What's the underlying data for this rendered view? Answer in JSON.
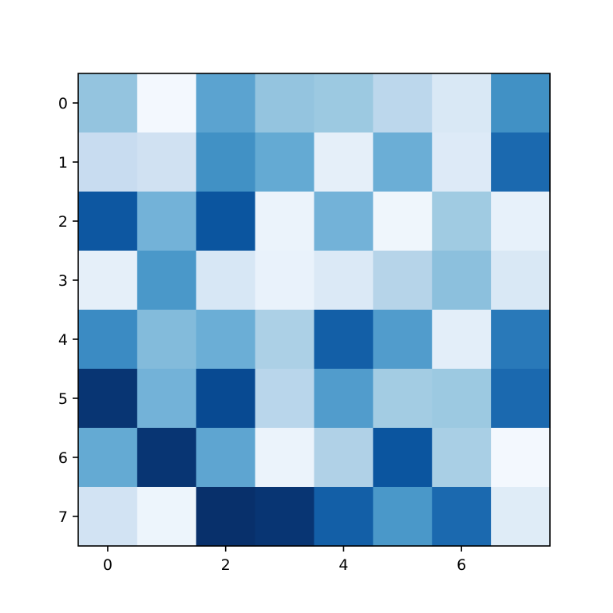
{
  "chart_data": {
    "type": "heatmap",
    "title": "",
    "xlabel": "",
    "ylabel": "",
    "colormap": "Blues",
    "vmin": 0,
    "vmax": 1,
    "x_range": [
      -0.5,
      7.5
    ],
    "y_range": [
      -0.5,
      7.5
    ],
    "y_inverted": true,
    "grid": false,
    "x_ticks": [
      0,
      2,
      4,
      6
    ],
    "y_ticks": [
      0,
      1,
      2,
      3,
      4,
      5,
      6,
      7
    ],
    "x_tick_labels": [
      "0",
      "2",
      "4",
      "6"
    ],
    "y_tick_labels": [
      "0",
      "1",
      "2",
      "3",
      "4",
      "5",
      "6",
      "7"
    ],
    "values": [
      [
        0.4,
        0.02,
        0.55,
        0.4,
        0.38,
        0.28,
        0.15,
        0.63
      ],
      [
        0.24,
        0.2,
        0.63,
        0.52,
        0.09,
        0.5,
        0.13,
        0.78
      ],
      [
        0.85,
        0.48,
        0.86,
        0.06,
        0.48,
        0.04,
        0.37,
        0.08
      ],
      [
        0.09,
        0.6,
        0.16,
        0.07,
        0.14,
        0.3,
        0.42,
        0.15
      ],
      [
        0.65,
        0.44,
        0.5,
        0.33,
        0.82,
        0.58,
        0.1,
        0.72
      ],
      [
        0.98,
        0.48,
        0.9,
        0.29,
        0.58,
        0.36,
        0.38,
        0.78
      ],
      [
        0.52,
        0.98,
        0.54,
        0.06,
        0.32,
        0.86,
        0.34,
        0.02
      ],
      [
        0.19,
        0.05,
        1.0,
        0.98,
        0.82,
        0.6,
        0.78,
        0.12
      ]
    ]
  }
}
